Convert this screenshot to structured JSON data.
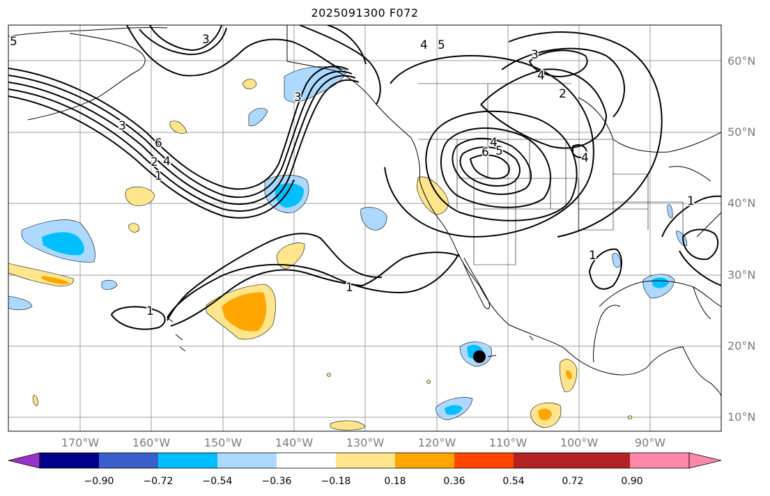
{
  "title": "2025091300 F072",
  "lat_labels": [
    "60°N",
    "50°N",
    "40°N",
    "30°N",
    "20°N",
    "10°N"
  ],
  "lon_labels": [
    "170°W",
    "160°W",
    "150°W",
    "140°W",
    "130°W",
    "120°W",
    "110°W",
    "100°W",
    "90°W"
  ],
  "colorbar": {
    "ticks": [
      "−0.90",
      "−0.72",
      "−0.54",
      "−0.36",
      "−0.18",
      "0.18",
      "0.36",
      "0.54",
      "0.72",
      "0.90"
    ],
    "colors": [
      "#9932cc",
      "#00008b",
      "#3a5fcd",
      "#00bfff",
      "#add8ff",
      "#ffffff",
      "#ffe68c",
      "#ffa500",
      "#ff4500",
      "#b22222",
      "#ff88aa"
    ]
  },
  "contour_labels": [
    "3",
    "3",
    "5",
    "4",
    "5",
    "3",
    "4",
    "2",
    "4",
    "5",
    "6",
    "4",
    "3",
    "6",
    "4",
    "2",
    "1",
    "1",
    "1",
    "1",
    "1"
  ],
  "marker": "storm-center"
}
